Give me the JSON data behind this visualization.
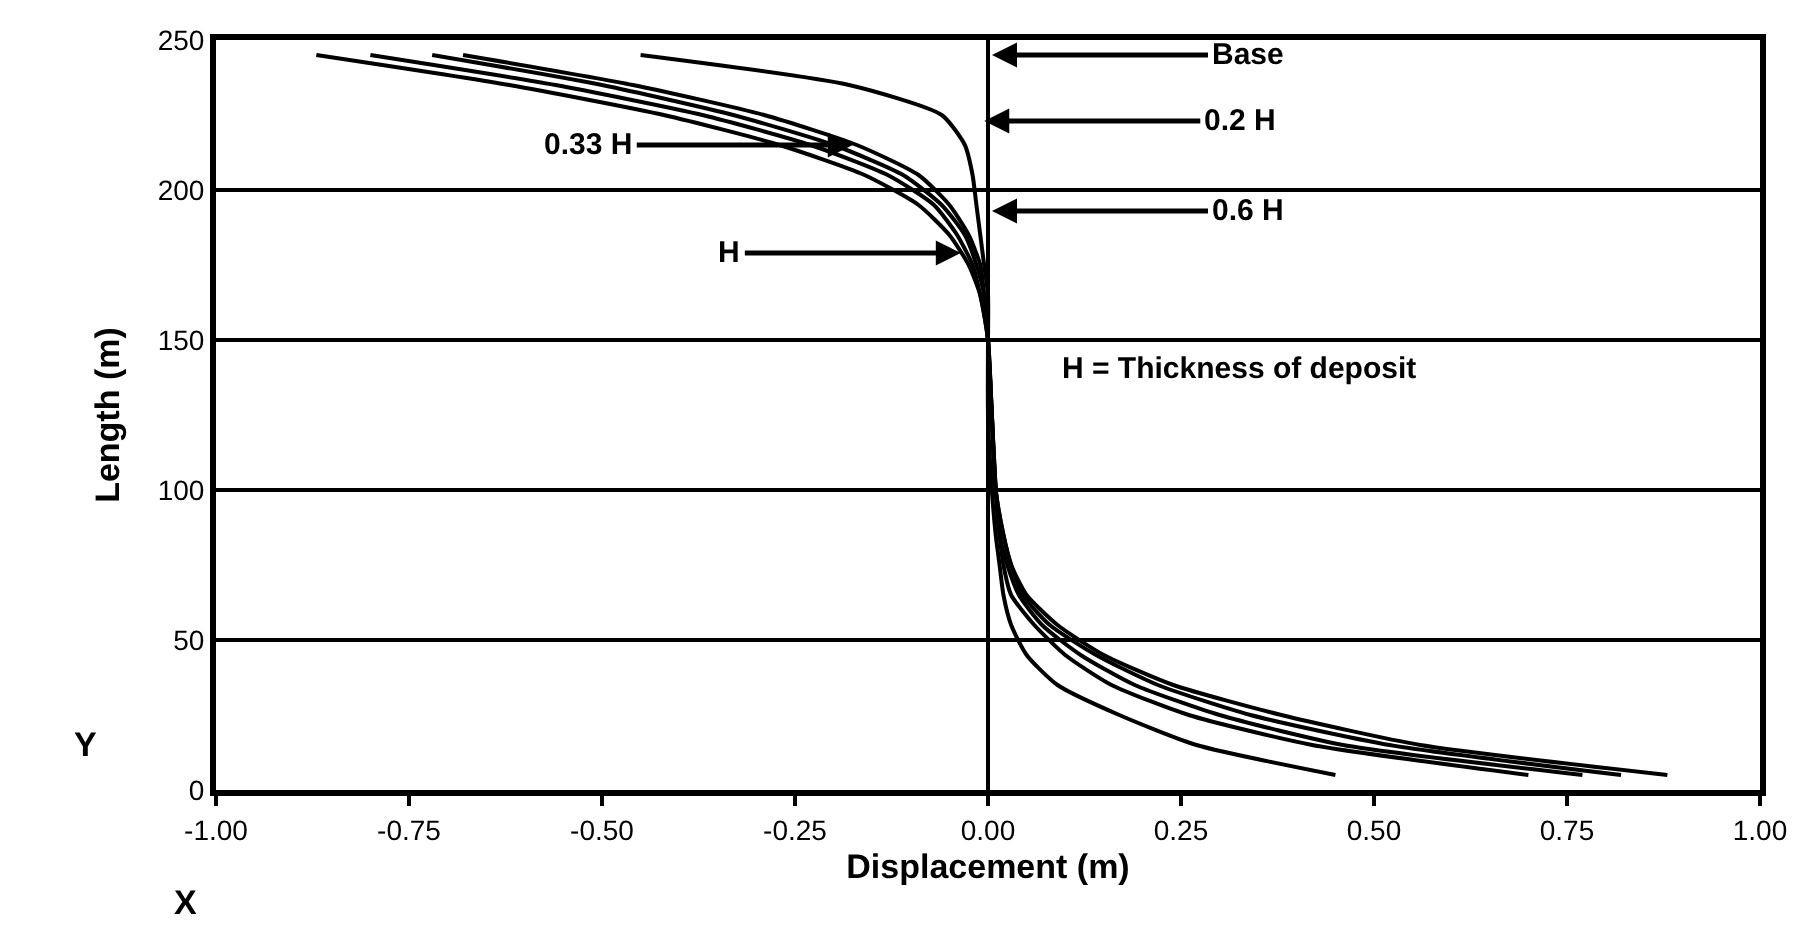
{
  "chart_data": {
    "type": "line",
    "xlabel": "Displacement (m)",
    "ylabel": "Length (m)",
    "xlim": [
      -1,
      1
    ],
    "ylim": [
      0,
      250
    ],
    "xticks": [
      {
        "value": -1,
        "label": "-1.00"
      },
      {
        "value": -0.75,
        "label": "-0.75"
      },
      {
        "value": -0.5,
        "label": "-0.50"
      },
      {
        "value": -0.25,
        "label": "-0.25"
      },
      {
        "value": 0,
        "label": "0.00"
      },
      {
        "value": 0.25,
        "label": "0.25"
      },
      {
        "value": 0.5,
        "label": "0.50"
      },
      {
        "value": 0.75,
        "label": "0.75"
      },
      {
        "value": 1,
        "label": "1.00"
      }
    ],
    "yticks": [
      0,
      50,
      100,
      150,
      200,
      250
    ],
    "grid": "y",
    "marker": "none",
    "line_style": "solid",
    "ref_lines": [
      {
        "axis": "x",
        "value": 0,
        "color": "#000000"
      }
    ],
    "series": [
      {
        "color": "#000000",
        "values": [
          245,
          235,
          225,
          215,
          205,
          195,
          185,
          175,
          165,
          150,
          125,
          100,
          85,
          75,
          65,
          55,
          45,
          35,
          25,
          15,
          5
        ],
        "x": [
          -0.45,
          -0.18,
          -0.06,
          -0.03,
          -0.02,
          -0.015,
          -0.01,
          -0.005,
          0,
          0,
          0,
          0.005,
          0.01,
          0.015,
          0.02,
          0.03,
          0.05,
          0.09,
          0.17,
          0.27,
          0.45
        ]
      },
      {
        "color": "#000000",
        "values": [
          245,
          235,
          225,
          215,
          205,
          195,
          185,
          175,
          165,
          150,
          125,
          100,
          85,
          75,
          65,
          55,
          45,
          35,
          25,
          15,
          5
        ],
        "x": [
          -0.68,
          -0.46,
          -0.29,
          -0.17,
          -0.09,
          -0.05,
          -0.025,
          -0.01,
          -0.005,
          0,
          0.005,
          0.01,
          0.015,
          0.02,
          0.03,
          0.06,
          0.1,
          0.16,
          0.26,
          0.42,
          0.7
        ]
      },
      {
        "color": "#000000",
        "values": [
          245,
          235,
          225,
          215,
          205,
          195,
          185,
          175,
          165,
          150,
          125,
          100,
          85,
          75,
          65,
          55,
          45,
          35,
          25,
          15,
          5
        ],
        "x": [
          -0.72,
          -0.5,
          -0.33,
          -0.2,
          -0.11,
          -0.06,
          -0.03,
          -0.015,
          -0.005,
          0,
          0.005,
          0.01,
          0.015,
          0.025,
          0.04,
          0.07,
          0.12,
          0.19,
          0.3,
          0.46,
          0.77
        ]
      },
      {
        "color": "#000000",
        "values": [
          245,
          235,
          225,
          215,
          205,
          195,
          185,
          175,
          165,
          150,
          125,
          100,
          85,
          75,
          65,
          55,
          45,
          35,
          25,
          15,
          5
        ],
        "x": [
          -0.8,
          -0.56,
          -0.37,
          -0.23,
          -0.13,
          -0.07,
          -0.04,
          -0.02,
          -0.01,
          0,
          0.005,
          0.01,
          0.02,
          0.03,
          0.045,
          0.08,
          0.14,
          0.22,
          0.34,
          0.52,
          0.82
        ]
      },
      {
        "color": "#000000",
        "values": [
          245,
          235,
          225,
          215,
          205,
          195,
          185,
          175,
          165,
          150,
          125,
          100,
          85,
          75,
          65,
          55,
          45,
          35,
          25,
          15,
          5
        ],
        "x": [
          -0.87,
          -0.62,
          -0.42,
          -0.27,
          -0.16,
          -0.09,
          -0.05,
          -0.025,
          -0.01,
          0,
          0.005,
          0.01,
          0.02,
          0.03,
          0.05,
          0.09,
          0.15,
          0.24,
          0.38,
          0.56,
          0.88
        ]
      }
    ],
    "annotations": [
      {
        "text": "Base",
        "x": 0,
        "y": 245
      },
      {
        "text": "0.2 H",
        "x": -0.01,
        "y": 223
      },
      {
        "text": "0.33 H",
        "x": -0.17,
        "y": 215
      },
      {
        "text": "0.6 H",
        "x": 0,
        "y": 193
      },
      {
        "text": "H",
        "x": -0.03,
        "y": 179
      },
      "H = Thickness of deposit",
      "Y",
      "X"
    ]
  }
}
